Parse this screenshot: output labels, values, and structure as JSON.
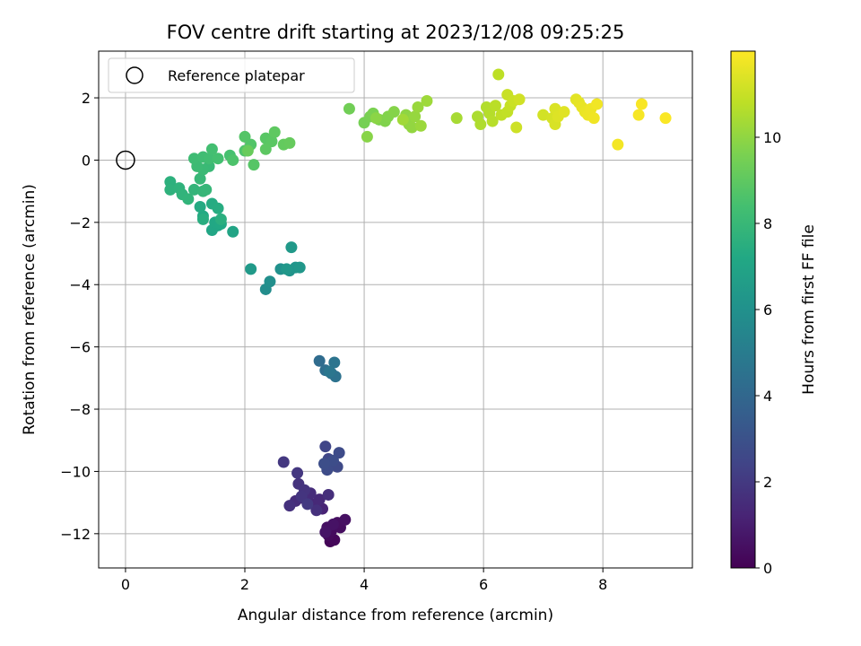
{
  "chart_data": {
    "type": "scatter",
    "title": "FOV centre drift starting at 2023/12/08 09:25:25",
    "xlabel": "Angular distance from reference (arcmin)",
    "ylabel": "Rotation from reference (arcmin)",
    "colorbar_label": "Hours from first FF file",
    "xlim": [
      -0.45,
      9.5
    ],
    "ylim": [
      -13.1,
      3.5
    ],
    "colorbar_range": [
      0,
      12
    ],
    "x_ticks": [
      0,
      2,
      4,
      6,
      8
    ],
    "y_ticks": [
      2,
      0,
      -2,
      -4,
      -6,
      -8,
      -10,
      -12
    ],
    "colorbar_ticks": [
      0,
      2,
      4,
      6,
      8,
      10
    ],
    "grid": true,
    "legend_position": "top-left",
    "colormap": "viridis",
    "reference": {
      "label": "Reference platepar",
      "x": 0,
      "y": 0
    },
    "points": [
      [
        3.43,
        -12.25,
        0.1
      ],
      [
        3.5,
        -12.2,
        0.2
      ],
      [
        3.4,
        -12.05,
        0.3
      ],
      [
        3.45,
        -11.9,
        0.35
      ],
      [
        3.6,
        -11.8,
        0.4
      ],
      [
        3.55,
        -11.65,
        0.45
      ],
      [
        3.68,
        -11.55,
        0.5
      ],
      [
        3.38,
        -11.8,
        0.55
      ],
      [
        3.48,
        -11.7,
        0.6
      ],
      [
        3.35,
        -11.95,
        0.65
      ],
      [
        3.2,
        -11.1,
        1.1
      ],
      [
        3.3,
        -11.2,
        1.2
      ],
      [
        3.05,
        -11.0,
        1.3
      ],
      [
        3.15,
        -11.05,
        1.35
      ],
      [
        3.25,
        -10.9,
        1.4
      ],
      [
        2.95,
        -10.85,
        1.45
      ],
      [
        3.1,
        -10.7,
        1.5
      ],
      [
        2.85,
        -10.95,
        1.55
      ],
      [
        3.4,
        -10.75,
        1.6
      ],
      [
        3.2,
        -11.25,
        1.65
      ],
      [
        2.75,
        -11.1,
        1.7
      ],
      [
        2.9,
        -10.4,
        1.75
      ],
      [
        3.0,
        -10.6,
        1.8
      ],
      [
        2.95,
        -10.8,
        1.85
      ],
      [
        2.88,
        -10.05,
        1.9
      ],
      [
        2.65,
        -9.7,
        1.95
      ],
      [
        3.05,
        -11.05,
        2.0
      ],
      [
        3.35,
        -9.2,
        2.5
      ],
      [
        3.4,
        -9.6,
        2.55
      ],
      [
        3.45,
        -9.8,
        2.6
      ],
      [
        3.55,
        -9.85,
        2.65
      ],
      [
        3.58,
        -9.4,
        2.7
      ],
      [
        3.38,
        -9.95,
        2.75
      ],
      [
        3.48,
        -9.65,
        2.8
      ],
      [
        3.33,
        -9.75,
        2.85
      ],
      [
        3.25,
        -6.45,
        4.2
      ],
      [
        3.35,
        -6.75,
        4.3
      ],
      [
        3.45,
        -6.85,
        4.4
      ],
      [
        3.52,
        -6.95,
        4.5
      ],
      [
        3.5,
        -6.5,
        4.6
      ],
      [
        3.42,
        -6.8,
        4.7
      ],
      [
        2.35,
        -4.15,
        5.8
      ],
      [
        2.42,
        -3.9,
        5.9
      ],
      [
        2.6,
        -3.5,
        6.0
      ],
      [
        2.75,
        -3.55,
        6.1
      ],
      [
        2.85,
        -3.45,
        6.2
      ],
      [
        2.92,
        -3.45,
        6.3
      ],
      [
        2.7,
        -3.5,
        6.35
      ],
      [
        2.78,
        -2.8,
        6.4
      ],
      [
        2.1,
        -3.5,
        6.45
      ],
      [
        1.8,
        -2.3,
        7.0
      ],
      [
        1.55,
        -2.1,
        7.05
      ],
      [
        1.45,
        -2.25,
        7.1
      ],
      [
        1.5,
        -2.0,
        7.15
      ],
      [
        1.6,
        -2.05,
        7.2
      ],
      [
        1.3,
        -1.8,
        7.25
      ],
      [
        1.25,
        -1.5,
        7.3
      ],
      [
        1.45,
        -1.4,
        7.35
      ],
      [
        1.55,
        -1.55,
        7.4
      ],
      [
        1.3,
        -1.9,
        7.45
      ],
      [
        1.6,
        -1.9,
        7.5
      ],
      [
        0.75,
        -0.7,
        7.6
      ],
      [
        0.75,
        -0.95,
        7.65
      ],
      [
        0.9,
        -0.9,
        7.7
      ],
      [
        0.95,
        -1.1,
        7.75
      ],
      [
        1.05,
        -1.25,
        7.8
      ],
      [
        1.15,
        -0.95,
        7.85
      ],
      [
        1.3,
        -1.0,
        7.9
      ],
      [
        1.35,
        -0.95,
        7.95
      ],
      [
        1.25,
        -0.6,
        8.0
      ],
      [
        1.4,
        -0.2,
        8.05
      ],
      [
        1.3,
        -0.3,
        8.1
      ],
      [
        1.2,
        -0.2,
        8.15
      ],
      [
        1.15,
        0.05,
        8.2
      ],
      [
        1.3,
        0.1,
        8.25
      ],
      [
        1.4,
        0.05,
        8.3
      ],
      [
        1.45,
        0.35,
        8.35
      ],
      [
        1.55,
        0.05,
        8.4
      ],
      [
        1.75,
        0.15,
        8.45
      ],
      [
        1.8,
        0.0,
        8.6
      ],
      [
        2.0,
        0.3,
        8.65
      ],
      [
        2.1,
        0.5,
        8.7
      ],
      [
        2.0,
        0.75,
        8.75
      ],
      [
        2.15,
        -0.15,
        8.8
      ],
      [
        2.35,
        0.7,
        8.85
      ],
      [
        2.45,
        0.6,
        8.9
      ],
      [
        2.35,
        0.35,
        8.95
      ],
      [
        2.5,
        0.9,
        9.0
      ],
      [
        2.65,
        0.5,
        9.1
      ],
      [
        2.75,
        0.55,
        9.15
      ],
      [
        2.05,
        0.3,
        9.2
      ],
      [
        3.75,
        1.65,
        9.4
      ],
      [
        4.0,
        1.2,
        9.5
      ],
      [
        4.1,
        1.4,
        9.55
      ],
      [
        4.15,
        1.5,
        9.6
      ],
      [
        4.25,
        1.3,
        9.65
      ],
      [
        4.35,
        1.25,
        9.7
      ],
      [
        4.4,
        1.4,
        9.75
      ],
      [
        4.5,
        1.55,
        9.8
      ],
      [
        4.05,
        0.75,
        9.85
      ],
      [
        4.2,
        1.35,
        9.9
      ],
      [
        4.7,
        1.45,
        9.95
      ],
      [
        4.75,
        1.15,
        10.0
      ],
      [
        4.8,
        1.05,
        10.05
      ],
      [
        4.85,
        1.4,
        10.1
      ],
      [
        4.9,
        1.7,
        10.15
      ],
      [
        4.95,
        1.1,
        10.2
      ],
      [
        5.05,
        1.9,
        10.25
      ],
      [
        4.65,
        1.3,
        10.3
      ],
      [
        5.55,
        1.35,
        10.4
      ],
      [
        5.9,
        1.4,
        10.5
      ],
      [
        5.95,
        1.15,
        10.55
      ],
      [
        6.05,
        1.7,
        10.6
      ],
      [
        6.1,
        1.5,
        10.65
      ],
      [
        6.15,
        1.25,
        10.7
      ],
      [
        6.2,
        1.75,
        10.75
      ],
      [
        6.25,
        2.75,
        10.8
      ],
      [
        6.3,
        1.45,
        10.85
      ],
      [
        6.4,
        1.55,
        10.9
      ],
      [
        6.45,
        1.75,
        10.95
      ],
      [
        6.4,
        2.1,
        11.0
      ],
      [
        6.5,
        1.9,
        11.05
      ],
      [
        6.55,
        1.05,
        11.1
      ],
      [
        6.6,
        1.95,
        11.15
      ],
      [
        7.0,
        1.45,
        11.2
      ],
      [
        7.15,
        1.35,
        11.25
      ],
      [
        7.2,
        1.15,
        11.3
      ],
      [
        7.2,
        1.65,
        11.35
      ],
      [
        7.25,
        1.4,
        11.4
      ],
      [
        7.35,
        1.55,
        11.45
      ],
      [
        7.55,
        1.95,
        11.5
      ],
      [
        7.6,
        1.85,
        11.55
      ],
      [
        7.65,
        1.7,
        11.6
      ],
      [
        7.7,
        1.55,
        11.65
      ],
      [
        7.75,
        1.45,
        11.7
      ],
      [
        7.8,
        1.65,
        11.72
      ],
      [
        7.85,
        1.35,
        11.75
      ],
      [
        7.9,
        1.8,
        11.78
      ],
      [
        8.25,
        0.5,
        11.82
      ],
      [
        8.6,
        1.45,
        11.86
      ],
      [
        8.65,
        1.8,
        11.9
      ],
      [
        9.05,
        1.35,
        11.95
      ]
    ]
  }
}
